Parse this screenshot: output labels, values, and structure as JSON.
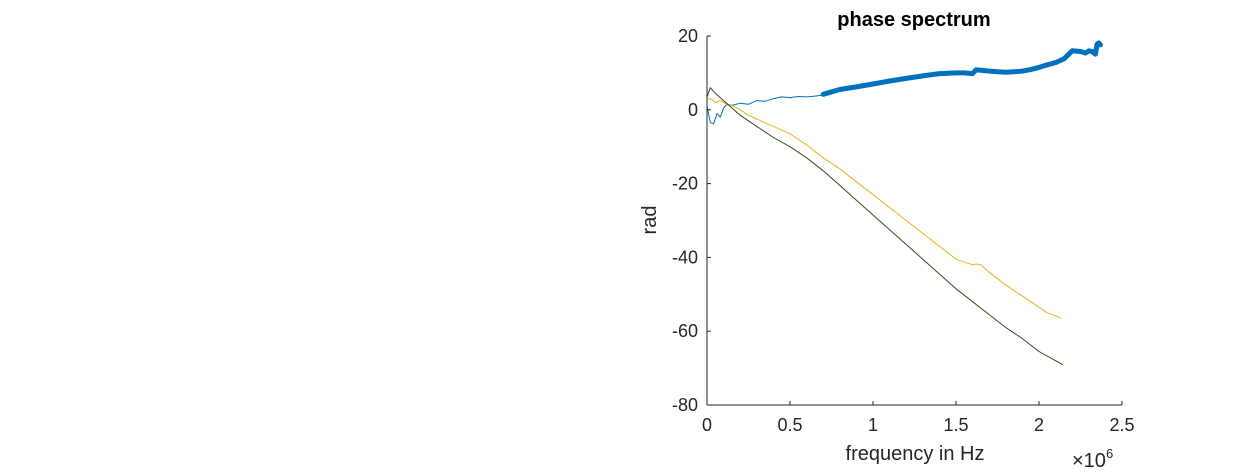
{
  "chart_data": {
    "type": "line",
    "title": "phase spectrum",
    "xlabel": "frequency in Hz",
    "ylabel": "rad",
    "x_exponent_label": "×10",
    "x_exponent_power": "6",
    "xlim": [
      0,
      2.5
    ],
    "ylim": [
      -80,
      20
    ],
    "xticks": [
      0,
      0.5,
      1,
      1.5,
      2,
      2.5
    ],
    "xtick_labels": [
      "0",
      "0.5",
      "1",
      "1.5",
      "2",
      "2.5"
    ],
    "yticks": [
      20,
      0,
      -20,
      -40,
      -60,
      -80
    ],
    "ytick_labels": [
      "20",
      "0",
      "-20",
      "-40",
      "-60",
      "-80"
    ],
    "grid": false,
    "x_units_note": "x values in units of 10^6 Hz",
    "series": [
      {
        "color": "#0072BD",
        "x": [
          0.0,
          0.02,
          0.04,
          0.06,
          0.08,
          0.1,
          0.12,
          0.15,
          0.2,
          0.25,
          0.3,
          0.35,
          0.4,
          0.45,
          0.5,
          0.55,
          0.6,
          0.65,
          0.7
        ],
        "y": [
          1.0,
          -3.5,
          -3.8,
          -1.0,
          -2.0,
          0.5,
          1.5,
          1.2,
          1.8,
          1.5,
          2.5,
          2.3,
          3.0,
          3.5,
          3.3,
          3.6,
          3.5,
          3.7,
          4.0
        ]
      },
      {
        "color": "#0072BD",
        "x": [
          0.7,
          0.8,
          0.9,
          1.0,
          1.1,
          1.2,
          1.3,
          1.4,
          1.5,
          1.55,
          1.6,
          1.62,
          1.65,
          1.7,
          1.75,
          1.8,
          1.85,
          1.9,
          1.95,
          2.0,
          2.05,
          2.1,
          2.15,
          2.2,
          2.25,
          2.28,
          2.3,
          2.32,
          2.34,
          2.35,
          2.36,
          2.37
        ],
        "y": [
          4.2,
          5.5,
          6.2,
          7.0,
          7.8,
          8.5,
          9.2,
          9.8,
          10.0,
          10.0,
          9.8,
          10.8,
          10.7,
          10.5,
          10.3,
          10.2,
          10.3,
          10.5,
          10.9,
          11.5,
          12.2,
          12.8,
          13.8,
          16.0,
          15.8,
          15.4,
          16.0,
          15.8,
          15.1,
          17.8,
          18.1,
          17.6
        ]
      },
      {
        "color": "#EDB120",
        "x": [
          0.0,
          0.02,
          0.05,
          0.08,
          0.12,
          0.16,
          0.2,
          0.25,
          0.3,
          0.4,
          0.5,
          0.6,
          0.7,
          0.8,
          0.9,
          1.0,
          1.1,
          1.2,
          1.3,
          1.4,
          1.5,
          1.6,
          1.62,
          1.65,
          1.7,
          1.8,
          1.9,
          2.0,
          2.05,
          2.1,
          2.13
        ],
        "y": [
          3.0,
          3.0,
          2.0,
          2.5,
          1.5,
          1.0,
          0.0,
          -1.5,
          -2.5,
          -4.5,
          -6.5,
          -9.5,
          -13.0,
          -16.0,
          -19.5,
          -23.0,
          -26.5,
          -30.0,
          -33.5,
          -37.0,
          -40.5,
          -42.0,
          -41.8,
          -42.0,
          -44.0,
          -47.5,
          -50.5,
          -53.5,
          -55.0,
          -55.8,
          -56.5
        ]
      },
      {
        "color": "#3B4A1E",
        "x": [
          0.0,
          0.02,
          0.05,
          0.1,
          0.15,
          0.2,
          0.3,
          0.4,
          0.5,
          0.6,
          0.7,
          0.8,
          0.9,
          1.0,
          1.1,
          1.2,
          1.3,
          1.4,
          1.5,
          1.6,
          1.7,
          1.8,
          1.9,
          2.0,
          2.1,
          2.14
        ],
        "y": [
          3.5,
          6.0,
          4.5,
          2.5,
          0.5,
          -1.5,
          -4.5,
          -7.5,
          -10.0,
          -13.0,
          -16.5,
          -20.5,
          -24.5,
          -28.5,
          -32.5,
          -36.5,
          -40.5,
          -44.5,
          -48.5,
          -52.0,
          -55.5,
          -59.0,
          -62.0,
          -65.5,
          -68.0,
          -69.0
        ]
      }
    ]
  }
}
